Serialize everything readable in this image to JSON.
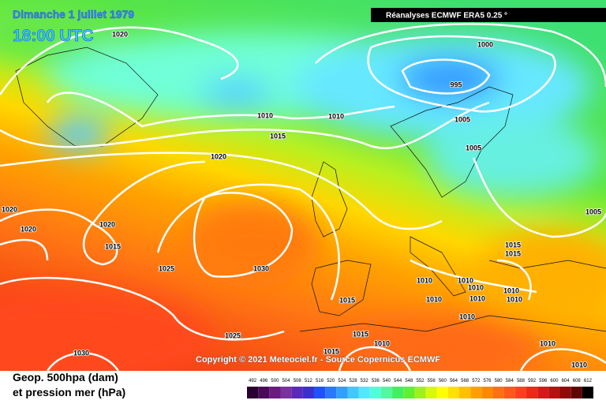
{
  "header": {
    "date": "Dimanche 1 juillet 1979",
    "time": "18:00 UTC",
    "source": "Réanalyses ECMWF ERA5 0.25 °"
  },
  "map": {
    "isobar_labels": [
      "1020",
      "1000",
      "995",
      "1010",
      "1010",
      "1005",
      "1015",
      "1005",
      "1020",
      "1020",
      "1005",
      "1020",
      "1020",
      "1015",
      "1015",
      "1015",
      "1025",
      "1030",
      "1010",
      "1010",
      "1010",
      "1010",
      "1010",
      "1015",
      "1010",
      "1010",
      "1010",
      "1025",
      "1015",
      "1010",
      "1015",
      "1030",
      "1010",
      "1010"
    ],
    "copyright": "Copyright © 2021 Meteociel.fr - Source Copernicus ECMWF"
  },
  "legend": {
    "line1": "Geop. 500hpa (dam)",
    "line2": "et pression mer (hPa)",
    "scale": [
      492,
      496,
      500,
      504,
      508,
      512,
      516,
      520,
      524,
      528,
      532,
      536,
      540,
      544,
      548,
      552,
      556,
      560,
      564,
      568,
      572,
      576,
      580,
      584,
      588,
      592,
      596,
      600,
      604,
      608,
      612
    ]
  }
}
